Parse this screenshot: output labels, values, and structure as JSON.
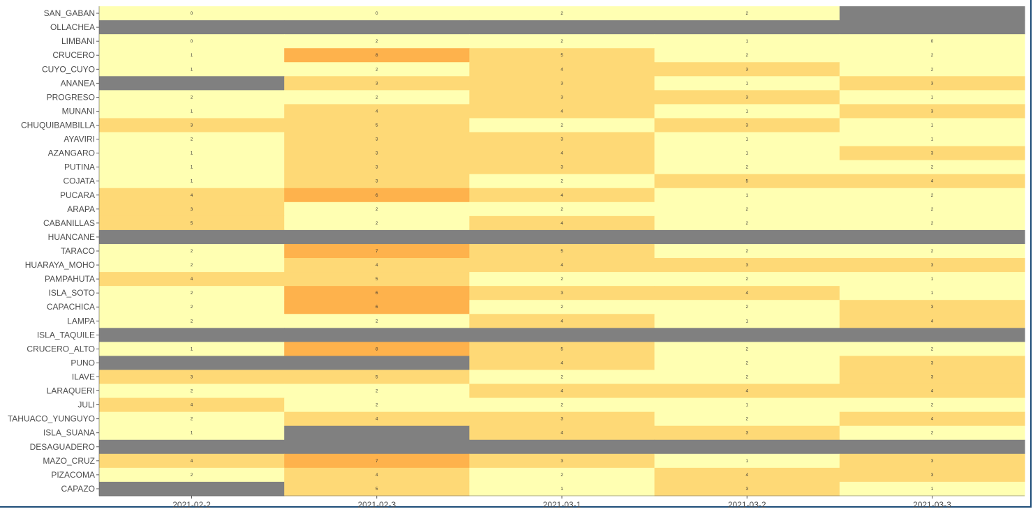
{
  "chart_data": {
    "type": "heatmap",
    "title": "",
    "xlabel": "",
    "ylabel": "",
    "x_categories": [
      "2021-02-2",
      "2021-02-3",
      "2021-03-1",
      "2021-03-2",
      "2021-03-3"
    ],
    "y_categories": [
      "SAN_GABAN",
      "OLLACHEA",
      "LIMBANI",
      "CRUCERO",
      "CUYO_CUYO",
      "ANANEA",
      "PROGRESO",
      "MUNANI",
      "CHUQUIBAMBILLA",
      "AYAVIRI",
      "AZANGARO",
      "PUTINA",
      "COJATA",
      "PUCARA",
      "ARAPA",
      "CABANILLAS",
      "HUANCANE",
      "TARACO",
      "HUARAYA_MOHO",
      "PAMPAHUTA",
      "ISLA_SOTO",
      "CAPACHICA",
      "LAMPA",
      "ISLA_TAQUILE",
      "CRUCERO_ALTO",
      "PUNO",
      "ILAVE",
      "LARAQUERI",
      "JULI",
      "TAHUACO_YUNGUYO",
      "ISLA_SUANA",
      "DESAGUADERO",
      "MAZO_CRUZ",
      "PIZACOMA",
      "CAPAZO"
    ],
    "values": [
      [
        0,
        0,
        2,
        2,
        null
      ],
      [
        null,
        null,
        null,
        null,
        null
      ],
      [
        0,
        2,
        2,
        1,
        0
      ],
      [
        1,
        8,
        5,
        2,
        2
      ],
      [
        1,
        2,
        4,
        3,
        2
      ],
      [
        null,
        3,
        3,
        1,
        3
      ],
      [
        2,
        2,
        3,
        3,
        1
      ],
      [
        1,
        4,
        4,
        1,
        3
      ],
      [
        3,
        5,
        2,
        3,
        1
      ],
      [
        2,
        3,
        3,
        1,
        1
      ],
      [
        1,
        3,
        4,
        1,
        3
      ],
      [
        1,
        3,
        3,
        2,
        2
      ],
      [
        1,
        3,
        2,
        5,
        4
      ],
      [
        4,
        6,
        4,
        1,
        2
      ],
      [
        3,
        2,
        2,
        2,
        2
      ],
      [
        5,
        2,
        4,
        2,
        2
      ],
      [
        null,
        null,
        null,
        null,
        null
      ],
      [
        2,
        7,
        5,
        2,
        2
      ],
      [
        2,
        4,
        4,
        3,
        3
      ],
      [
        4,
        5,
        2,
        2,
        1
      ],
      [
        2,
        6,
        3,
        4,
        1
      ],
      [
        2,
        6,
        2,
        2,
        3
      ],
      [
        2,
        2,
        4,
        1,
        4
      ],
      [
        null,
        null,
        null,
        null,
        null
      ],
      [
        1,
        8,
        5,
        2,
        2
      ],
      [
        null,
        null,
        4,
        2,
        3
      ],
      [
        3,
        5,
        2,
        2,
        3
      ],
      [
        2,
        2,
        4,
        4,
        4
      ],
      [
        4,
        2,
        2,
        1,
        2
      ],
      [
        2,
        4,
        3,
        2,
        4
      ],
      [
        1,
        null,
        4,
        3,
        2
      ],
      [
        null,
        null,
        null,
        null,
        null
      ],
      [
        4,
        7,
        3,
        1,
        3
      ],
      [
        2,
        4,
        2,
        4,
        3
      ],
      [
        null,
        5,
        1,
        3,
        1
      ]
    ],
    "color_scale": {
      "low": "#ffffb2",
      "mid": "#fed976",
      "high": "#feb24c",
      "na": "#808080",
      "thresholds": [
        2,
        5
      ]
    },
    "legend": "none",
    "grid": false
  }
}
